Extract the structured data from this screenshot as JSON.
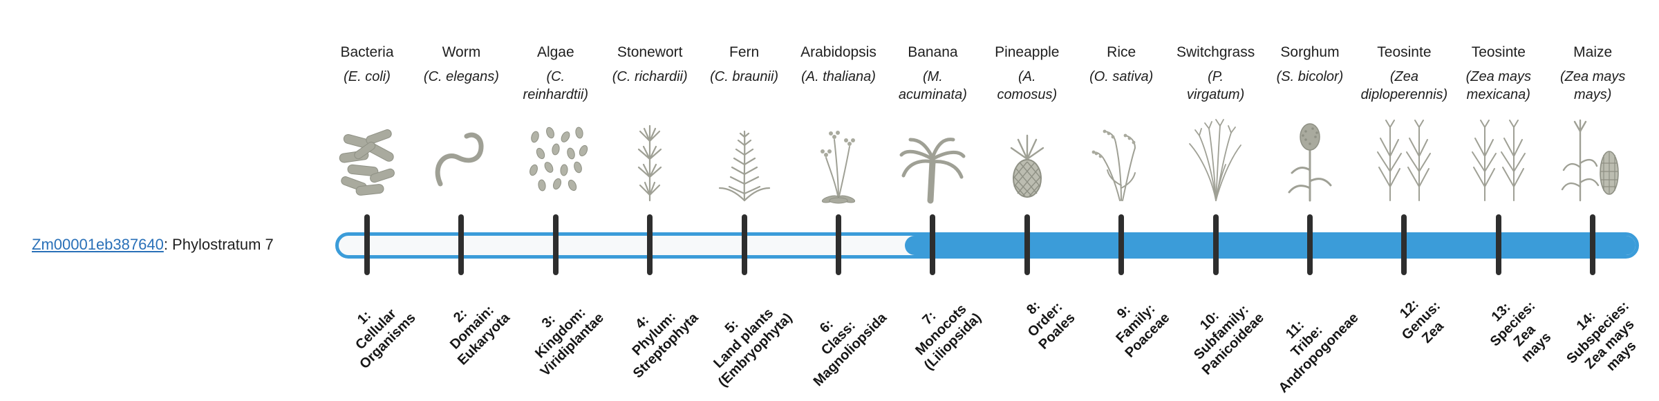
{
  "colors": {
    "accent": "#3b9cd9",
    "track": "#f7f9fa",
    "tick": "#2e2e2e",
    "link": "#2970b8",
    "illustration": "#9fa095"
  },
  "gene": {
    "id": "Zm00001eb387640",
    "suffix": ": Phylostratum 7",
    "phylostratum": 7
  },
  "bar": {
    "total_strata": 14,
    "filled_from_stratum": 7
  },
  "organisms": [
    {
      "name": "Bacteria",
      "scientific": "(E. coli)",
      "icon": "bacteria-icon"
    },
    {
      "name": "Worm",
      "scientific": "(C. elegans)",
      "icon": "worm-icon"
    },
    {
      "name": "Algae",
      "scientific": "(C.\nreinhardtii)",
      "icon": "algae-icon"
    },
    {
      "name": "Stonewort",
      "scientific": "(C. richardii)",
      "icon": "stonewort-icon"
    },
    {
      "name": "Fern",
      "scientific": "(C. braunii)",
      "icon": "fern-icon"
    },
    {
      "name": "Arabidopsis",
      "scientific": "(A. thaliana)",
      "icon": "arabidopsis-icon"
    },
    {
      "name": "Banana",
      "scientific": "(M.\nacuminata)",
      "icon": "banana-icon"
    },
    {
      "name": "Pineapple",
      "scientific": "(A.\ncomosus)",
      "icon": "pineapple-icon"
    },
    {
      "name": "Rice",
      "scientific": "(O. sativa)",
      "icon": "rice-icon"
    },
    {
      "name": "Switchgrass",
      "scientific": "(P.\nvirgatum)",
      "icon": "switchgrass-icon"
    },
    {
      "name": "Sorghum",
      "scientific": "(S. bicolor)",
      "icon": "sorghum-icon"
    },
    {
      "name": "Teosinte",
      "scientific": "(Zea\ndiploperennis)",
      "icon": "teosinte-icon"
    },
    {
      "name": "Teosinte",
      "scientific": "(Zea mays\nmexicana)",
      "icon": "teosinte-icon"
    },
    {
      "name": "Maize",
      "scientific": "(Zea mays\nmays)",
      "icon": "maize-icon"
    }
  ],
  "strata": [
    {
      "label": "1:\nCellular\nOrganisms"
    },
    {
      "label": "2:\nDomain:\nEukaryota"
    },
    {
      "label": "3:\nKingdom:\nViridiplantae"
    },
    {
      "label": "4:\nPhylum:\nStreptophyta"
    },
    {
      "label": "5:\nLand plants\n(Embryophyta)"
    },
    {
      "label": "6:\nClass:\nMagnoliopsida"
    },
    {
      "label": "7:\nMonocots\n(Liliopsida)"
    },
    {
      "label": "8:\nOrder:\nPoales"
    },
    {
      "label": "9:\nFamily:\nPoaceae"
    },
    {
      "label": "10:\nSubfamily:\nPanicoideae"
    },
    {
      "label": "11:\nTribe:\nAndropogoneae"
    },
    {
      "label": "12:\nGenus:\nZea"
    },
    {
      "label": "13:\nSpecies:\nZea\nmays"
    },
    {
      "label": "14:\nSubspecies:\nZea mays\nmays"
    }
  ]
}
